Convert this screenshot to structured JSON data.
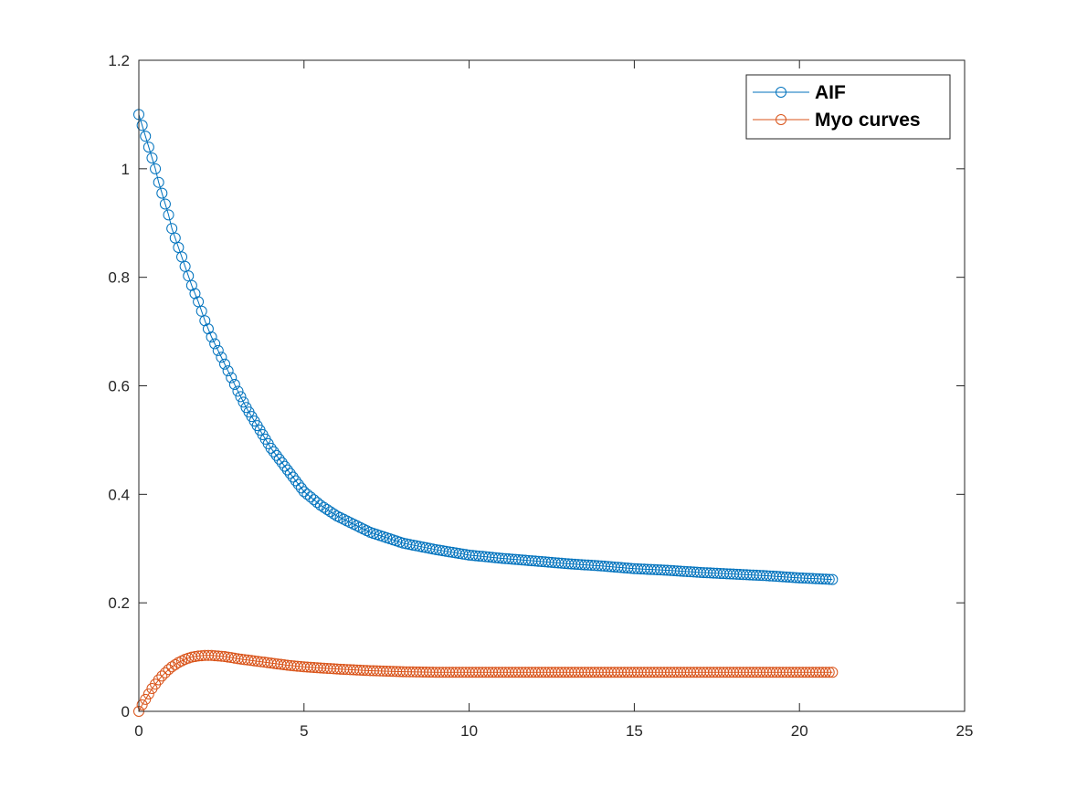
{
  "chart_data": {
    "type": "scatter",
    "title": "",
    "xlabel": "",
    "ylabel": "",
    "xlim": [
      0,
      25
    ],
    "ylim": [
      0,
      1.2
    ],
    "xticks": [
      "0",
      "5",
      "10",
      "15",
      "20",
      "25"
    ],
    "yticks": [
      "0",
      "0.2",
      "0.4",
      "0.6",
      "0.8",
      "1",
      "1.2"
    ],
    "grid": false,
    "box": true,
    "legend_position": "top-right",
    "marker": "circle",
    "series": [
      {
        "name": "AIF",
        "color": "#0072BD",
        "points": [
          [
            0,
            1.1
          ],
          [
            0.1,
            1.08
          ],
          [
            0.2,
            1.06
          ],
          [
            0.3,
            1.04
          ],
          [
            0.4,
            1.02
          ],
          [
            0.5,
            1.0
          ],
          [
            0.6,
            0.975
          ],
          [
            0.7,
            0.955
          ],
          [
            0.8,
            0.935
          ],
          [
            0.9,
            0.915
          ],
          [
            1.0,
            0.89
          ],
          [
            1.2,
            0.855
          ],
          [
            1.4,
            0.82
          ],
          [
            1.6,
            0.785
          ],
          [
            1.8,
            0.755
          ],
          [
            2.0,
            0.72
          ],
          [
            2.2,
            0.69
          ],
          [
            2.4,
            0.665
          ],
          [
            2.6,
            0.64
          ],
          [
            2.8,
            0.615
          ],
          [
            3.0,
            0.59
          ],
          [
            3.25,
            0.56
          ],
          [
            3.5,
            0.535
          ],
          [
            3.75,
            0.51
          ],
          [
            4.0,
            0.485
          ],
          [
            4.25,
            0.465
          ],
          [
            4.5,
            0.445
          ],
          [
            4.75,
            0.425
          ],
          [
            5.0,
            0.405
          ],
          [
            5.5,
            0.38
          ],
          [
            6.0,
            0.36
          ],
          [
            6.5,
            0.345
          ],
          [
            7.0,
            0.33
          ],
          [
            7.5,
            0.32
          ],
          [
            8.0,
            0.31
          ],
          [
            9.0,
            0.298
          ],
          [
            10.0,
            0.288
          ],
          [
            11.0,
            0.282
          ],
          [
            12.0,
            0.277
          ],
          [
            13.0,
            0.272
          ],
          [
            14.0,
            0.268
          ],
          [
            15.0,
            0.263
          ],
          [
            16.0,
            0.26
          ],
          [
            17.0,
            0.256
          ],
          [
            18.0,
            0.253
          ],
          [
            19.0,
            0.25
          ],
          [
            20.0,
            0.246
          ],
          [
            21.0,
            0.243
          ]
        ]
      },
      {
        "name": "Myo curves",
        "color": "#D95319",
        "points": [
          [
            0,
            0.0
          ],
          [
            0.1,
            0.012
          ],
          [
            0.2,
            0.022
          ],
          [
            0.3,
            0.032
          ],
          [
            0.4,
            0.042
          ],
          [
            0.5,
            0.05
          ],
          [
            0.6,
            0.058
          ],
          [
            0.7,
            0.065
          ],
          [
            0.8,
            0.071
          ],
          [
            0.9,
            0.077
          ],
          [
            1.0,
            0.082
          ],
          [
            1.2,
            0.09
          ],
          [
            1.4,
            0.096
          ],
          [
            1.6,
            0.1
          ],
          [
            1.8,
            0.102
          ],
          [
            2.0,
            0.103
          ],
          [
            2.2,
            0.103
          ],
          [
            2.4,
            0.102
          ],
          [
            2.6,
            0.101
          ],
          [
            2.8,
            0.099
          ],
          [
            3.0,
            0.097
          ],
          [
            3.5,
            0.093
          ],
          [
            4.0,
            0.089
          ],
          [
            4.5,
            0.085
          ],
          [
            5.0,
            0.082
          ],
          [
            5.5,
            0.08
          ],
          [
            6.0,
            0.078
          ],
          [
            7.0,
            0.075
          ],
          [
            8.0,
            0.073
          ],
          [
            9.0,
            0.072
          ],
          [
            10.0,
            0.072
          ],
          [
            11.0,
            0.072
          ],
          [
            12.0,
            0.072
          ],
          [
            13.0,
            0.072
          ],
          [
            14.0,
            0.072
          ],
          [
            15.0,
            0.072
          ],
          [
            16.0,
            0.072
          ],
          [
            17.0,
            0.072
          ],
          [
            18.0,
            0.072
          ],
          [
            19.0,
            0.072
          ],
          [
            20.0,
            0.072
          ],
          [
            21.0,
            0.072
          ]
        ]
      }
    ]
  }
}
